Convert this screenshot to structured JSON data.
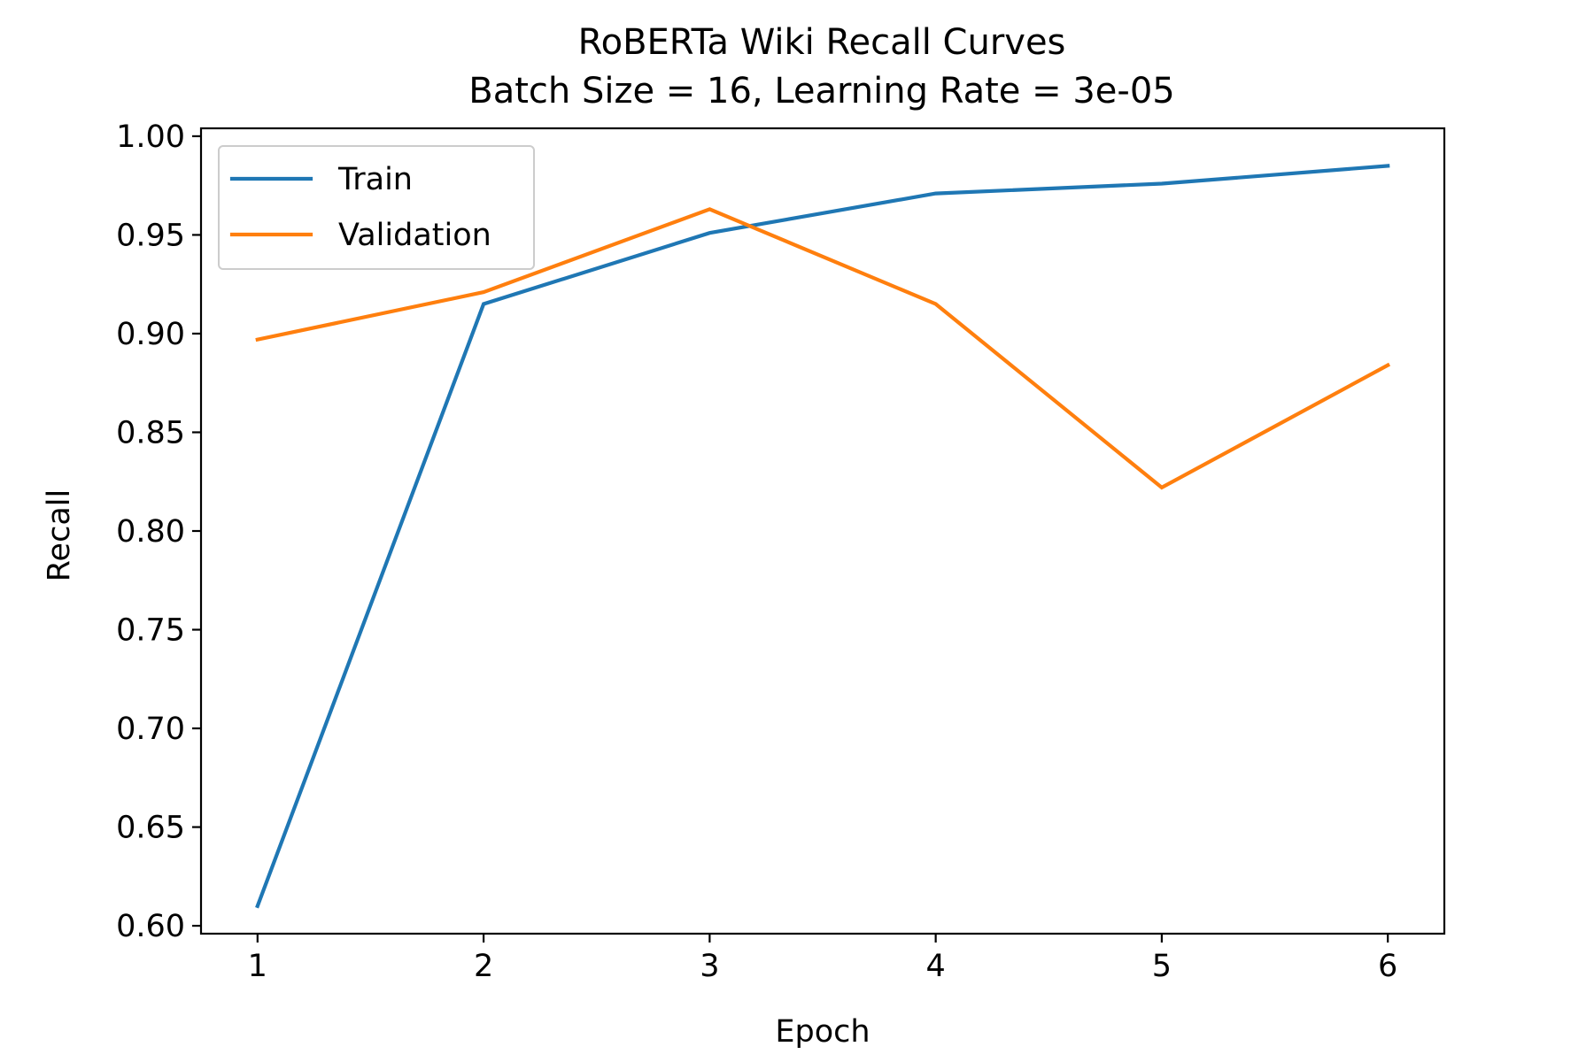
{
  "chart_data": {
    "type": "line",
    "title": "RoBERTa Wiki Recall Curves",
    "subtitle": "Batch Size = 16, Learning Rate = 3e-05",
    "xlabel": "Epoch",
    "ylabel": "Recall",
    "x": [
      1,
      2,
      3,
      4,
      5,
      6
    ],
    "xlim": [
      0.75,
      6.25
    ],
    "ylim": [
      0.596,
      1.004
    ],
    "xticks": [
      1,
      2,
      3,
      4,
      5,
      6
    ],
    "yticks": [
      0.6,
      0.65,
      0.7,
      0.75,
      0.8,
      0.85,
      0.9,
      0.95,
      1.0
    ],
    "yticklabels": [
      "0.60",
      "0.65",
      "0.70",
      "0.75",
      "0.80",
      "0.85",
      "0.90",
      "0.95",
      "1.00"
    ],
    "grid": false,
    "legend_position": "top-left",
    "series": [
      {
        "name": "Train",
        "color": "#1f77b4",
        "values": [
          0.61,
          0.915,
          0.951,
          0.971,
          0.976,
          0.985
        ]
      },
      {
        "name": "Validation",
        "color": "#ff7f0e",
        "values": [
          0.897,
          0.921,
          0.963,
          0.915,
          0.822,
          0.884
        ]
      }
    ]
  }
}
